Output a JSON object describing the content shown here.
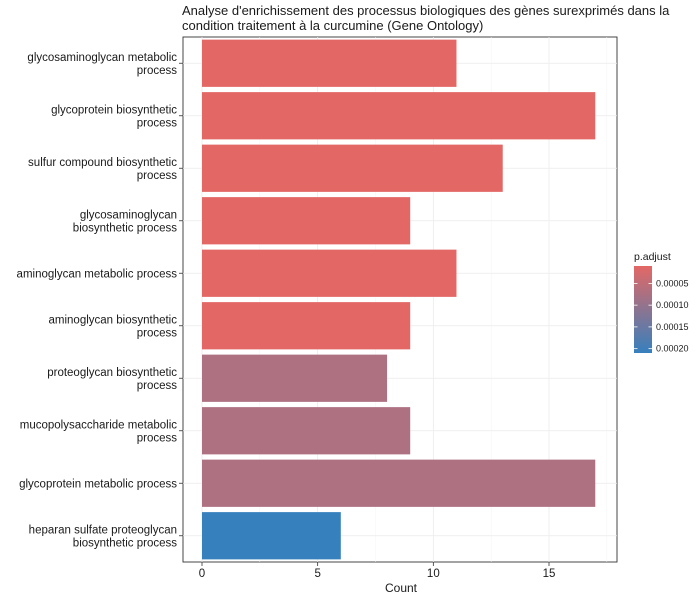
{
  "chart_data": {
    "type": "bar",
    "orientation": "horizontal",
    "title": "Analyse d'enrichissement des processus biologiques des gènes surexprimés dans la condition traitement à la curcumine (Gene Ontology)",
    "title_lines": [
      "Analyse d'enrichissement des processus biologiques des gènes surexprimés dans la",
      "condition traitement à la curcumine (Gene Ontology)"
    ],
    "xlabel": "Count",
    "ylabel": "",
    "xlim": [
      0,
      18
    ],
    "xticks": [
      0,
      5,
      10,
      15
    ],
    "grid": true,
    "categories": [
      [
        "glycosaminoglycan metabolic",
        "process"
      ],
      [
        "glycoprotein biosynthetic",
        "process"
      ],
      [
        "sulfur compound biosynthetic",
        "process"
      ],
      [
        "glycosaminoglycan",
        "biosynthetic process"
      ],
      [
        "aminoglycan metabolic process"
      ],
      [
        "aminoglycan biosynthetic",
        "process"
      ],
      [
        "proteoglycan biosynthetic",
        "process"
      ],
      [
        "mucopolysaccharide metabolic",
        "process"
      ],
      [
        "glycoprotein metabolic process"
      ],
      [
        "heparan sulfate proteoglycan",
        "biosynthetic process"
      ]
    ],
    "values": [
      11,
      17,
      13,
      9,
      11,
      9,
      8,
      9,
      17,
      6
    ],
    "p_adjust": [
      1e-05,
      1e-05,
      1e-05,
      1e-05,
      1e-05,
      1e-05,
      0.00013,
      0.00013,
      0.00013,
      0.00021
    ],
    "colors": [
      "#e36865",
      "#e36865",
      "#e36865",
      "#e36865",
      "#e36865",
      "#e36865",
      "#ad7182",
      "#ad7182",
      "#ad7182",
      "#3680bd"
    ],
    "legend": {
      "title": "p.adjust",
      "placement": "right",
      "labels": [
        "0.00005",
        "0.00010",
        "0.00015",
        "0.00020"
      ],
      "values": [
        5e-05,
        0.0001,
        0.00015,
        0.0002
      ],
      "range": [
        1e-05,
        0.00021
      ],
      "color_low": "#e36865",
      "color_high": "#3680bd"
    }
  }
}
